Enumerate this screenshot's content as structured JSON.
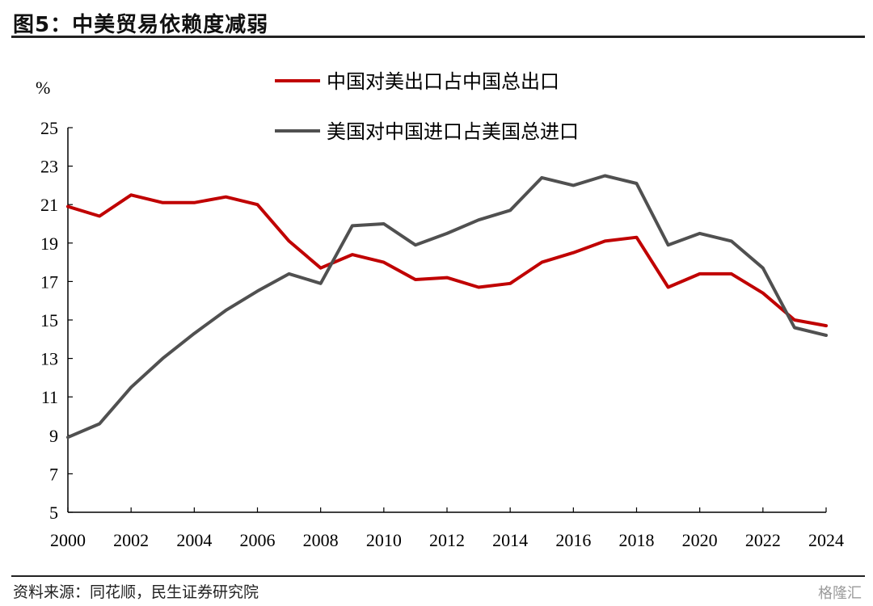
{
  "header": {
    "title": "图5：中美贸易依赖度减弱"
  },
  "footer": {
    "source": "资料来源：同花顺，民生证券研究院",
    "watermark": "格隆汇"
  },
  "chart_data": {
    "type": "line",
    "title": "图5：中美贸易依赖度减弱",
    "unit": "%",
    "xlabel": "",
    "ylabel": "%",
    "ylim": [
      5,
      25
    ],
    "yticks": [
      5,
      7,
      9,
      11,
      13,
      15,
      17,
      19,
      21,
      23,
      25
    ],
    "xlim": [
      2000,
      2024
    ],
    "xticks": [
      2000,
      2002,
      2004,
      2006,
      2008,
      2010,
      2012,
      2014,
      2016,
      2018,
      2020,
      2022,
      2024
    ],
    "grid": false,
    "legend_position": "top-center",
    "x": [
      2000,
      2001,
      2002,
      2003,
      2004,
      2005,
      2006,
      2007,
      2008,
      2009,
      2010,
      2011,
      2012,
      2013,
      2014,
      2015,
      2016,
      2017,
      2018,
      2019,
      2020,
      2021,
      2022,
      2023,
      2024
    ],
    "series": [
      {
        "name": "中国对美出口占中国总出口",
        "color": "#c00000",
        "values": [
          20.9,
          20.4,
          21.5,
          21.1,
          21.1,
          21.4,
          21.0,
          19.1,
          17.7,
          18.4,
          18.0,
          17.1,
          17.2,
          16.7,
          16.9,
          18.0,
          18.5,
          19.1,
          19.3,
          16.7,
          17.4,
          17.4,
          16.4,
          15.0,
          14.7
        ]
      },
      {
        "name": "美国对中国进口占美国总进口",
        "color": "#505050",
        "values": [
          8.9,
          9.6,
          11.5,
          13.0,
          14.3,
          15.5,
          16.5,
          17.4,
          16.9,
          19.9,
          20.0,
          18.9,
          19.5,
          20.2,
          20.7,
          22.4,
          22.0,
          22.5,
          22.1,
          18.9,
          19.5,
          19.1,
          17.7,
          14.6,
          14.2
        ]
      }
    ]
  }
}
